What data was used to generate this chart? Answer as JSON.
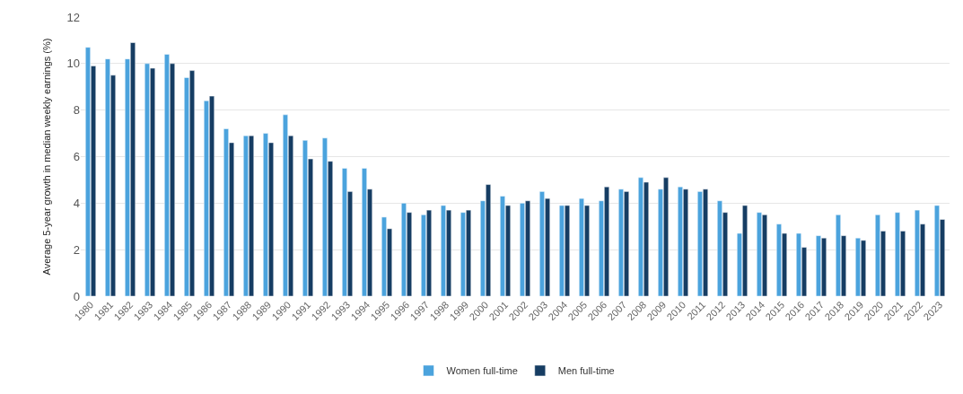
{
  "chart_data": {
    "type": "bar",
    "ylabel": "Average 5-year growth in median weekly earnings (%)",
    "categories": [
      "1980",
      "1981",
      "1982",
      "1983",
      "1984",
      "1985",
      "1986",
      "1987",
      "1988",
      "1989",
      "1990",
      "1991",
      "1992",
      "1993",
      "1994",
      "1995",
      "1996",
      "1997",
      "1998",
      "1999",
      "2000",
      "2001",
      "2002",
      "2003",
      "2004",
      "2005",
      "2006",
      "2007",
      "2008",
      "2009",
      "2010",
      "2011",
      "2012",
      "2013",
      "2014",
      "2015",
      "2016",
      "2017",
      "2018",
      "2019",
      "2020",
      "2021",
      "2022",
      "2023"
    ],
    "series": [
      {
        "name": "Women full-time",
        "color": "#4ba3dd",
        "values": [
          10.7,
          10.2,
          10.2,
          10.0,
          10.4,
          9.4,
          8.4,
          7.2,
          6.9,
          7.0,
          7.8,
          6.7,
          6.8,
          5.5,
          5.5,
          3.4,
          4.0,
          3.5,
          3.9,
          3.6,
          4.1,
          4.3,
          4.0,
          4.5,
          3.9,
          4.2,
          4.1,
          4.6,
          5.1,
          4.6,
          4.7,
          4.5,
          4.1,
          2.7,
          3.6,
          3.1,
          2.7,
          2.6,
          3.5,
          2.5,
          3.5,
          3.6,
          3.7,
          3.9
        ]
      },
      {
        "name": "Men full-time",
        "color": "#163d63",
        "values": [
          9.9,
          9.5,
          10.9,
          9.8,
          10.0,
          9.7,
          8.6,
          6.6,
          6.9,
          6.6,
          6.9,
          5.9,
          5.8,
          4.5,
          4.6,
          2.9,
          3.6,
          3.7,
          3.7,
          3.7,
          4.8,
          3.9,
          4.1,
          4.2,
          3.9,
          3.9,
          4.7,
          4.5,
          4.9,
          5.1,
          4.6,
          4.6,
          3.6,
          3.9,
          3.5,
          2.7,
          2.1,
          2.5,
          2.6,
          2.4,
          2.8,
          2.8,
          3.1,
          3.3
        ]
      }
    ],
    "ylim": [
      0,
      12
    ],
    "yticks": [
      0,
      2,
      4,
      6,
      8,
      10,
      12
    ],
    "grid": "y",
    "legend": "bottom"
  }
}
